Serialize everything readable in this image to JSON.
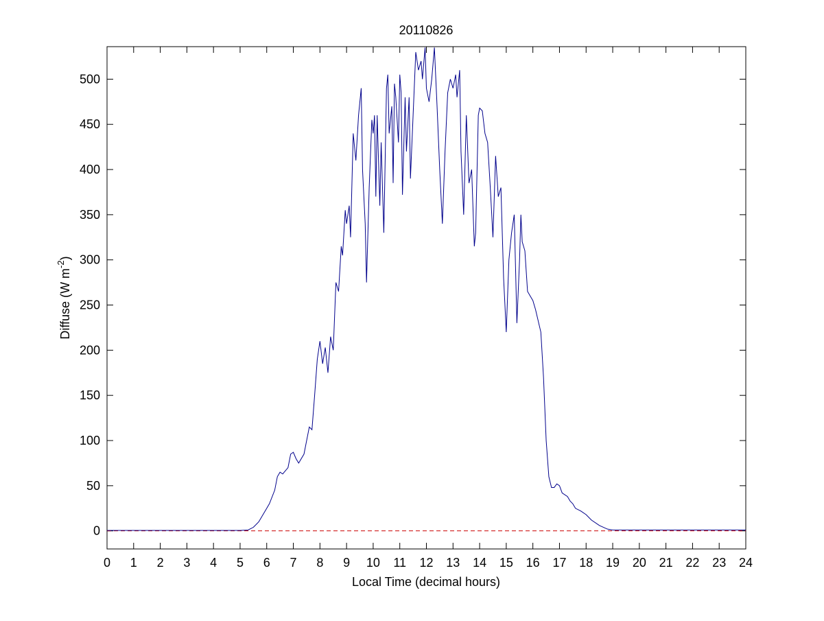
{
  "chart_data": {
    "type": "line",
    "title": "20110826",
    "x_label": "Local Time (decimal hours)",
    "y_label": {
      "text": "Diffuse (W m",
      "superscript": "-2",
      "suffix": ")"
    },
    "xlim": [
      0,
      24
    ],
    "ylim": [
      -20,
      536
    ],
    "xticks": [
      0,
      1,
      2,
      3,
      4,
      5,
      6,
      7,
      8,
      9,
      10,
      11,
      12,
      13,
      14,
      15,
      16,
      17,
      18,
      19,
      20,
      21,
      22,
      23,
      24
    ],
    "yticks": [
      0,
      50,
      100,
      150,
      200,
      250,
      300,
      350,
      400,
      450,
      500
    ],
    "reference_line": {
      "value": 0,
      "color": "#cc0000"
    },
    "series": [
      {
        "color": "#00008b",
        "x": [
          0,
          5,
          5.3,
          5.5,
          5.7,
          5.9,
          6.1,
          6.3,
          6.4,
          6.5,
          6.6,
          6.8,
          6.9,
          7.0,
          7.1,
          7.2,
          7.4,
          7.5,
          7.6,
          7.7,
          7.8,
          7.9,
          8.0,
          8.1,
          8.2,
          8.3,
          8.4,
          8.5,
          8.6,
          8.7,
          8.8,
          8.85,
          8.95,
          9.0,
          9.1,
          9.15,
          9.25,
          9.35,
          9.45,
          9.55,
          9.6,
          9.7,
          9.75,
          9.85,
          9.95,
          10.0,
          10.05,
          10.1,
          10.15,
          10.25,
          10.3,
          10.4,
          10.5,
          10.55,
          10.6,
          10.7,
          10.75,
          10.8,
          10.85,
          10.95,
          11.0,
          11.05,
          11.1,
          11.2,
          11.25,
          11.35,
          11.4,
          11.5,
          11.6,
          11.7,
          11.8,
          11.85,
          11.95,
          12.0,
          12.1,
          12.2,
          12.3,
          12.4,
          12.5,
          12.6,
          12.7,
          12.8,
          12.9,
          13.0,
          13.1,
          13.15,
          13.25,
          13.3,
          13.4,
          13.5,
          13.6,
          13.7,
          13.8,
          13.85,
          13.95,
          14.0,
          14.1,
          14.2,
          14.3,
          14.4,
          14.5,
          14.6,
          14.7,
          14.8,
          14.9,
          15.0,
          15.1,
          15.2,
          15.3,
          15.4,
          15.5,
          15.55,
          15.6,
          15.7,
          15.8,
          15.9,
          16.0,
          16.1,
          16.3,
          16.4,
          16.5,
          16.6,
          16.7,
          16.8,
          16.9,
          17.0,
          17.1,
          17.3,
          17.4,
          17.5,
          17.6,
          17.8,
          18.0,
          18.2,
          18.5,
          18.8,
          19.0,
          20,
          21,
          24
        ],
        "values": [
          0.5,
          0.5,
          1,
          4,
          10,
          20,
          30,
          45,
          60,
          65,
          63,
          70,
          85,
          87,
          80,
          75,
          85,
          100,
          115,
          112,
          150,
          190,
          210,
          185,
          203,
          175,
          215,
          200,
          275,
          265,
          315,
          305,
          355,
          340,
          360,
          325,
          440,
          410,
          460,
          490,
          400,
          340,
          275,
          380,
          455,
          440,
          460,
          370,
          460,
          360,
          430,
          330,
          490,
          505,
          440,
          470,
          385,
          495,
          480,
          430,
          505,
          485,
          372,
          480,
          420,
          480,
          390,
          460,
          530,
          510,
          520,
          500,
          535,
          490,
          475,
          500,
          535,
          470,
          400,
          340,
          420,
          485,
          500,
          490,
          505,
          480,
          510,
          420,
          350,
          460,
          385,
          400,
          315,
          330,
          460,
          468,
          465,
          440,
          430,
          380,
          325,
          415,
          370,
          380,
          280,
          220,
          300,
          330,
          350,
          230,
          300,
          350,
          320,
          310,
          265,
          260,
          255,
          245,
          220,
          170,
          100,
          60,
          48,
          48,
          52,
          50,
          42,
          38,
          33,
          30,
          25,
          22,
          18,
          12,
          6,
          2,
          1,
          1,
          1,
          1
        ]
      }
    ]
  }
}
